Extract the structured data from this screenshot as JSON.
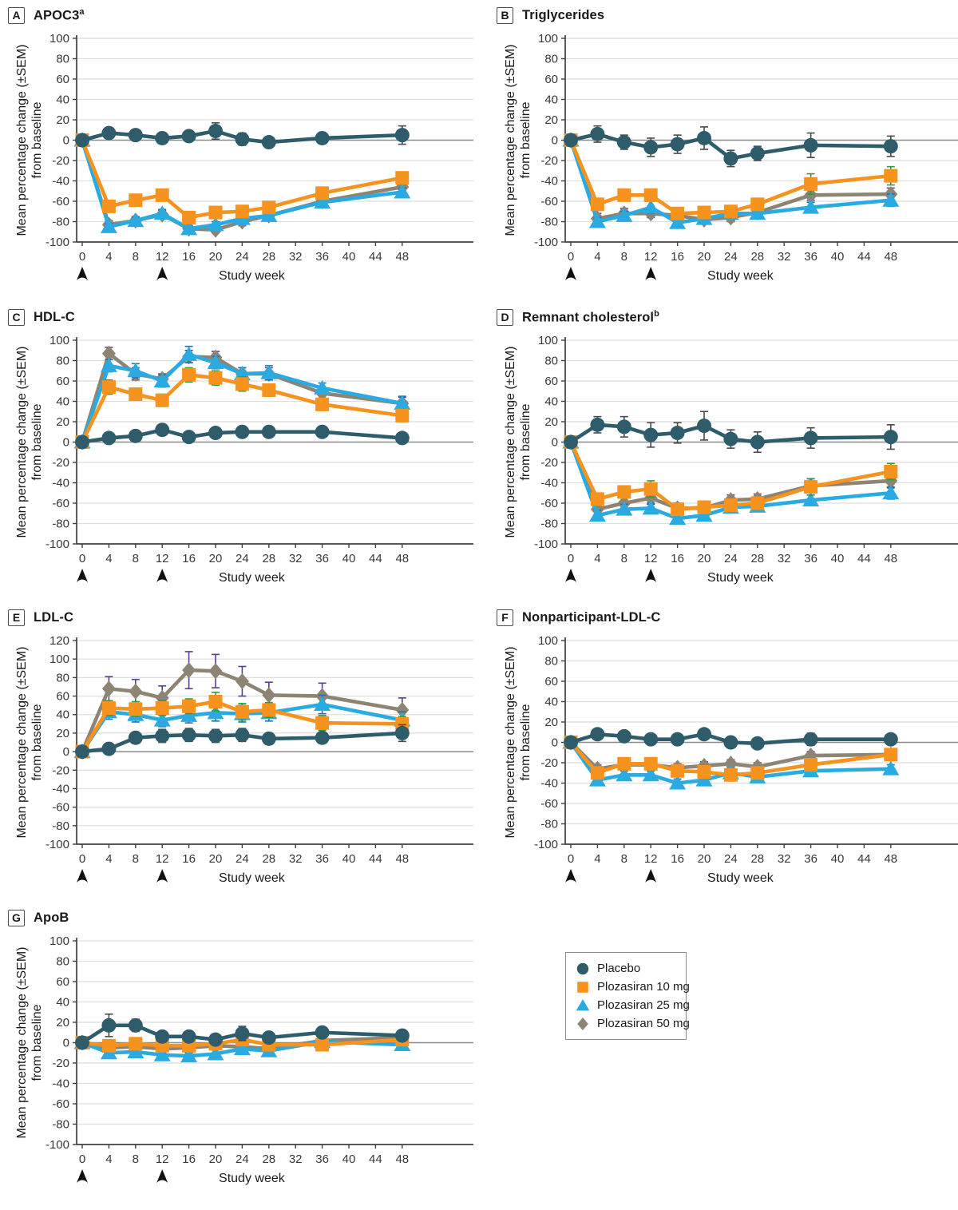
{
  "figure": {
    "ylabel_line1": "Mean percentage change (±SEM)",
    "ylabel_line2": "from baseline",
    "xlabel": "Study week",
    "xticks": [
      0,
      4,
      8,
      12,
      16,
      20,
      24,
      28,
      32,
      36,
      40,
      44,
      48
    ],
    "arrow_weeks": [
      0,
      12
    ],
    "series_meta": [
      {
        "key": "placebo",
        "label": "Placebo",
        "color": "#2e5c6b",
        "err_color": "#4a4a4a",
        "marker": "circle"
      },
      {
        "key": "p10",
        "label": "Plozasiran 10 mg",
        "color": "#f6921e",
        "err_color": "#2f9e41",
        "marker": "square"
      },
      {
        "key": "p25",
        "label": "Plozasiran 25 mg",
        "color": "#29abe2",
        "err_color": "#1b75bc",
        "marker": "triangle"
      },
      {
        "key": "p50",
        "label": "Plozasiran 50 mg",
        "color": "#8d8474",
        "err_color": "#5a3f8f",
        "marker": "diamond"
      }
    ]
  },
  "chart_data": [
    {
      "panel": "A",
      "type": "line",
      "title": "APOC3",
      "title_sup": "a",
      "xlabel": "Study week",
      "ylim": [
        -100,
        100
      ],
      "yticks": [
        100,
        80,
        60,
        40,
        20,
        0,
        -20,
        -40,
        -60,
        -80,
        -100
      ],
      "x_weeks": [
        0,
        4,
        8,
        12,
        16,
        20,
        24,
        28,
        36,
        48
      ],
      "series": [
        {
          "name": "Placebo",
          "values": [
            0,
            7,
            5,
            2,
            4,
            9,
            1,
            -2,
            2,
            5
          ],
          "sem": [
            2,
            3,
            3,
            5,
            5,
            8,
            6,
            5,
            4,
            9
          ]
        },
        {
          "name": "Plozasiran 10 mg",
          "values": [
            0,
            -65,
            -59,
            -54,
            -76,
            -71,
            -70,
            -66,
            -52,
            -37
          ],
          "sem": [
            3,
            4,
            4,
            5,
            4,
            4,
            4,
            4,
            4,
            4
          ]
        },
        {
          "name": "Plozasiran 25 mg",
          "values": [
            0,
            -85,
            -79,
            -72,
            -87,
            -83,
            -77,
            -74,
            -61,
            -51
          ],
          "sem": [
            3,
            3,
            3,
            4,
            3,
            3,
            3,
            3,
            3,
            4
          ]
        },
        {
          "name": "Plozasiran 50 mg",
          "values": [
            0,
            -83,
            -79,
            -73,
            -87,
            -88,
            -80,
            -74,
            -60,
            -46
          ],
          "sem": [
            3,
            4,
            4,
            4,
            3,
            3,
            4,
            4,
            4,
            4
          ]
        }
      ]
    },
    {
      "panel": "B",
      "type": "line",
      "title": "Triglycerides",
      "title_sup": "",
      "xlabel": "Study week",
      "ylim": [
        -100,
        100
      ],
      "yticks": [
        100,
        80,
        60,
        40,
        20,
        0,
        -20,
        -40,
        -60,
        -80,
        -100
      ],
      "x_weeks": [
        0,
        4,
        8,
        12,
        16,
        20,
        24,
        28,
        36,
        48
      ],
      "series": [
        {
          "name": "Placebo",
          "values": [
            0,
            6,
            -2,
            -7,
            -4,
            2,
            -18,
            -13,
            -5,
            -6
          ],
          "sem": [
            2,
            8,
            7,
            9,
            9,
            11,
            8,
            7,
            12,
            10
          ]
        },
        {
          "name": "Plozasiran 10 mg",
          "values": [
            0,
            -63,
            -54,
            -54,
            -72,
            -71,
            -70,
            -63,
            -43,
            -35
          ],
          "sem": [
            3,
            5,
            5,
            6,
            4,
            5,
            5,
            5,
            10,
            9
          ]
        },
        {
          "name": "Plozasiran 25 mg",
          "values": [
            0,
            -80,
            -74,
            -66,
            -81,
            -77,
            -72,
            -72,
            -66,
            -59
          ],
          "sem": [
            3,
            4,
            4,
            6,
            4,
            4,
            4,
            4,
            5,
            6
          ]
        },
        {
          "name": "Plozasiran 50 mg",
          "values": [
            0,
            -77,
            -72,
            -72,
            -74,
            -78,
            -76,
            -71,
            -54,
            -53
          ],
          "sem": [
            3,
            5,
            5,
            4,
            4,
            4,
            4,
            4,
            5,
            6
          ]
        }
      ]
    },
    {
      "panel": "C",
      "type": "line",
      "title": "HDL-C",
      "title_sup": "",
      "xlabel": "Study week",
      "ylim": [
        -100,
        100
      ],
      "yticks": [
        100,
        80,
        60,
        40,
        20,
        0,
        -20,
        -40,
        -60,
        -80,
        -100
      ],
      "x_weeks": [
        0,
        4,
        8,
        12,
        16,
        20,
        24,
        28,
        36,
        48
      ],
      "series": [
        {
          "name": "Placebo",
          "values": [
            0,
            4,
            6,
            12,
            5,
            9,
            10,
            10,
            10,
            4
          ],
          "sem": [
            2,
            3,
            3,
            4,
            3,
            3,
            3,
            3,
            3,
            3
          ]
        },
        {
          "name": "Plozasiran 10 mg",
          "values": [
            0,
            54,
            47,
            41,
            66,
            63,
            57,
            51,
            37,
            26
          ],
          "sem": [
            3,
            7,
            6,
            6,
            7,
            7,
            7,
            6,
            6,
            6
          ]
        },
        {
          "name": "Plozasiran 25 mg",
          "values": [
            0,
            75,
            70,
            60,
            86,
            78,
            67,
            68,
            53,
            38
          ],
          "sem": [
            3,
            6,
            7,
            6,
            8,
            6,
            6,
            7,
            5,
            7
          ]
        },
        {
          "name": "Plozasiran 50 mg",
          "values": [
            0,
            87,
            67,
            62,
            84,
            83,
            67,
            67,
            48,
            38
          ],
          "sem": [
            3,
            6,
            6,
            5,
            6,
            6,
            6,
            6,
            5,
            6
          ]
        }
      ]
    },
    {
      "panel": "D",
      "type": "line",
      "title": "Remnant cholesterol",
      "title_sup": "b",
      "xlabel": "Study week",
      "ylim": [
        -100,
        100
      ],
      "yticks": [
        100,
        80,
        60,
        40,
        20,
        0,
        -20,
        -40,
        -60,
        -80,
        -100
      ],
      "x_weeks": [
        0,
        4,
        8,
        12,
        16,
        20,
        24,
        28,
        36,
        48
      ],
      "series": [
        {
          "name": "Placebo",
          "values": [
            0,
            17,
            15,
            7,
            9,
            16,
            3,
            0,
            4,
            5
          ],
          "sem": [
            2,
            8,
            10,
            12,
            10,
            14,
            9,
            10,
            10,
            12
          ]
        },
        {
          "name": "Plozasiran 10 mg",
          "values": [
            0,
            -56,
            -49,
            -46,
            -66,
            -64,
            -62,
            -60,
            -44,
            -29
          ],
          "sem": [
            3,
            6,
            6,
            8,
            6,
            6,
            6,
            6,
            8,
            8
          ]
        },
        {
          "name": "Plozasiran 25 mg",
          "values": [
            0,
            -72,
            -66,
            -65,
            -75,
            -72,
            -64,
            -63,
            -57,
            -50
          ],
          "sem": [
            3,
            5,
            5,
            5,
            5,
            5,
            5,
            5,
            5,
            6
          ]
        },
        {
          "name": "Plozasiran 50 mg",
          "values": [
            0,
            -66,
            -60,
            -55,
            -65,
            -65,
            -57,
            -56,
            -43,
            -38
          ],
          "sem": [
            3,
            5,
            5,
            6,
            5,
            5,
            5,
            5,
            7,
            7
          ]
        }
      ]
    },
    {
      "panel": "E",
      "type": "line",
      "title": "LDL-C",
      "title_sup": "",
      "xlabel": "Study week",
      "ylim": [
        -100,
        120
      ],
      "yticks": [
        120,
        100,
        80,
        60,
        40,
        20,
        0,
        -20,
        -40,
        -60,
        -80,
        -100
      ],
      "x_weeks": [
        0,
        4,
        8,
        12,
        16,
        20,
        24,
        28,
        36,
        48
      ],
      "series": [
        {
          "name": "Placebo",
          "values": [
            0,
            3,
            15,
            17,
            18,
            17,
            18,
            14,
            15,
            20
          ],
          "sem": [
            2,
            5,
            6,
            7,
            7,
            7,
            7,
            6,
            6,
            9
          ]
        },
        {
          "name": "Plozasiran 10 mg",
          "values": [
            0,
            47,
            46,
            47,
            49,
            54,
            43,
            45,
            31,
            30
          ],
          "sem": [
            3,
            8,
            8,
            8,
            8,
            10,
            9,
            8,
            8,
            8
          ]
        },
        {
          "name": "Plozasiran 25 mg",
          "values": [
            0,
            43,
            40,
            34,
            39,
            42,
            41,
            42,
            51,
            34
          ],
          "sem": [
            3,
            8,
            8,
            7,
            8,
            9,
            9,
            9,
            10,
            9
          ]
        },
        {
          "name": "Plozasiran 50 mg",
          "values": [
            0,
            68,
            65,
            58,
            88,
            87,
            76,
            61,
            60,
            45
          ],
          "sem": [
            3,
            13,
            13,
            13,
            20,
            18,
            16,
            14,
            14,
            13
          ]
        }
      ]
    },
    {
      "panel": "F",
      "type": "line",
      "title": "Nonparticipant-LDL-C",
      "title_sup": "",
      "xlabel": "Study week",
      "ylim": [
        -100,
        100
      ],
      "yticks": [
        100,
        80,
        60,
        40,
        20,
        0,
        -20,
        -40,
        -60,
        -80,
        -100
      ],
      "x_weeks": [
        0,
        4,
        8,
        12,
        16,
        20,
        24,
        28,
        36,
        48
      ],
      "series": [
        {
          "name": "Placebo",
          "values": [
            0,
            8,
            6,
            3,
            3,
            8,
            0,
            -1,
            3,
            3
          ],
          "sem": [
            2,
            4,
            4,
            4,
            4,
            4,
            4,
            4,
            6,
            5
          ]
        },
        {
          "name": "Plozasiran 10 mg",
          "values": [
            0,
            -30,
            -21,
            -21,
            -28,
            -29,
            -32,
            -30,
            -22,
            -12
          ],
          "sem": [
            2,
            4,
            4,
            4,
            4,
            4,
            4,
            4,
            4,
            5
          ]
        },
        {
          "name": "Plozasiran 25 mg",
          "values": [
            0,
            -37,
            -32,
            -32,
            -40,
            -37,
            -30,
            -34,
            -28,
            -26
          ],
          "sem": [
            2,
            4,
            4,
            4,
            4,
            4,
            4,
            4,
            4,
            4
          ]
        },
        {
          "name": "Plozasiran 50 mg",
          "values": [
            0,
            -26,
            -22,
            -22,
            -25,
            -23,
            -21,
            -24,
            -13,
            -12
          ],
          "sem": [
            2,
            4,
            4,
            4,
            4,
            4,
            4,
            4,
            4,
            5
          ]
        }
      ]
    },
    {
      "panel": "G",
      "type": "line",
      "title": "ApoB",
      "title_sup": "",
      "xlabel": "Study week",
      "ylim": [
        -100,
        100
      ],
      "yticks": [
        100,
        80,
        60,
        40,
        20,
        0,
        -20,
        -40,
        -60,
        -80,
        -100
      ],
      "x_weeks": [
        0,
        4,
        8,
        12,
        16,
        20,
        24,
        28,
        36,
        48
      ],
      "series": [
        {
          "name": "Placebo",
          "values": [
            0,
            17,
            17,
            6,
            6,
            3,
            9,
            5,
            10,
            7
          ],
          "sem": [
            2,
            11,
            6,
            4,
            4,
            4,
            7,
            4,
            4,
            4
          ]
        },
        {
          "name": "Plozasiran 10 mg",
          "values": [
            0,
            -3,
            -1,
            -3,
            -3,
            -1,
            3,
            -2,
            -2,
            3
          ],
          "sem": [
            2,
            4,
            4,
            4,
            4,
            4,
            4,
            4,
            4,
            4
          ]
        },
        {
          "name": "Plozasiran 25 mg",
          "values": [
            0,
            -10,
            -9,
            -12,
            -13,
            -11,
            -6,
            -8,
            1,
            -2
          ],
          "sem": [
            2,
            4,
            4,
            4,
            4,
            4,
            4,
            4,
            4,
            4
          ]
        },
        {
          "name": "Plozasiran 50 mg",
          "values": [
            0,
            -5,
            -4,
            -6,
            -5,
            -3,
            -4,
            -6,
            2,
            5
          ],
          "sem": [
            2,
            4,
            4,
            4,
            5,
            4,
            4,
            4,
            4,
            4
          ]
        }
      ]
    }
  ]
}
